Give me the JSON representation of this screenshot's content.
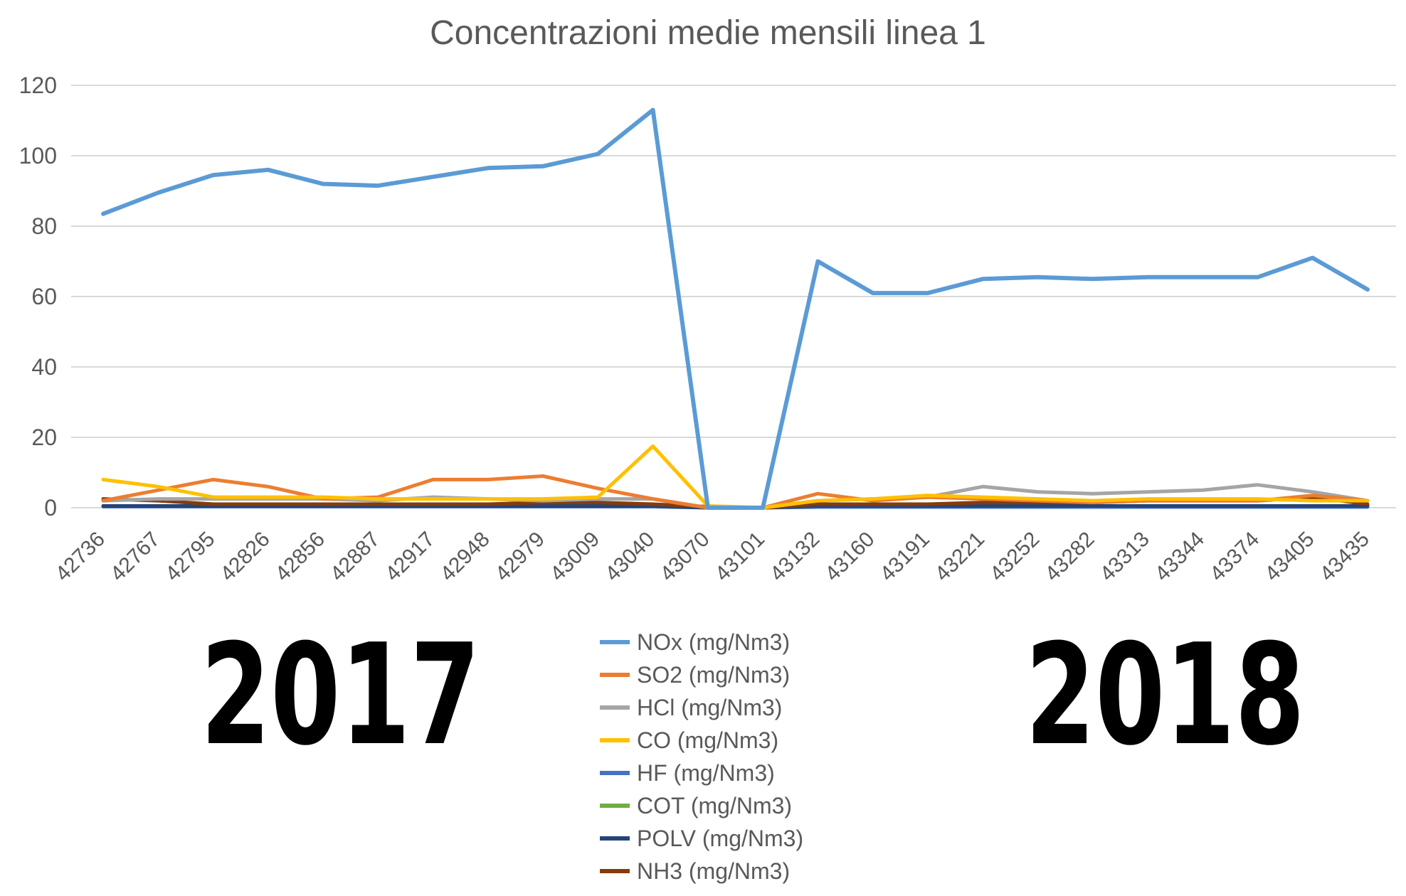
{
  "chart_data": {
    "type": "line",
    "title": "Concentrazioni medie mensili linea 1",
    "xlabel": "",
    "ylabel": "",
    "ylim": [
      0,
      120
    ],
    "yticks": [
      "0",
      "20",
      "40",
      "60",
      "80",
      "100",
      "120"
    ],
    "grid": true,
    "legend_position": "bottom",
    "categories": [
      "42736",
      "42767",
      "42795",
      "42826",
      "42856",
      "42887",
      "42917",
      "42948",
      "42979",
      "43009",
      "43040",
      "43070",
      "43101",
      "43132",
      "43160",
      "43191",
      "43221",
      "43252",
      "43282",
      "43313",
      "43344",
      "43374",
      "43405",
      "43435"
    ],
    "series": [
      {
        "name": "NOx (mg/Nm3)",
        "color": "#5B9BD5",
        "values": [
          83.5,
          89.5,
          94.5,
          96,
          92,
          91.5,
          94,
          96.5,
          97,
          100.5,
          113,
          0,
          0,
          70,
          61,
          61,
          65,
          65.5,
          65,
          65.5,
          65.5,
          65.5,
          71,
          62
        ]
      },
      {
        "name": "SO2 (mg/Nm3)",
        "color": "#ED7D31",
        "values": [
          2,
          5,
          8,
          6,
          2.5,
          3,
          8,
          8,
          9,
          5.5,
          2.5,
          0,
          0,
          4,
          2,
          3,
          2.5,
          2,
          1.5,
          2,
          2,
          2,
          3.5,
          2
        ]
      },
      {
        "name": "HCl (mg/Nm3)",
        "color": "#A5A5A5",
        "values": [
          2,
          2.5,
          2.5,
          2.5,
          2.5,
          2,
          3,
          2.5,
          2,
          2.5,
          2.5,
          0,
          0,
          2,
          2.5,
          3,
          6,
          4.5,
          4,
          4.5,
          5,
          6.5,
          4.5,
          2
        ]
      },
      {
        "name": "CO (mg/Nm3)",
        "color": "#FFC000",
        "values": [
          8,
          6,
          3,
          3,
          3,
          2.5,
          2.5,
          2.5,
          2.5,
          3,
          17.5,
          0.5,
          0,
          2,
          2.5,
          3.5,
          3,
          2.5,
          2,
          2.5,
          2.5,
          2.5,
          2,
          2
        ]
      },
      {
        "name": "HF (mg/Nm3)",
        "color": "#4472C4",
        "values": [
          0.3,
          0.3,
          0.3,
          0.3,
          0.3,
          0.3,
          0.3,
          0.3,
          0.3,
          0.3,
          0.3,
          0,
          0,
          0.2,
          0.2,
          0.2,
          0.2,
          0.2,
          0.2,
          0.2,
          0.2,
          0.2,
          0.2,
          0.2
        ]
      },
      {
        "name": "COT (mg/Nm3)",
        "color": "#70AD47",
        "values": [
          0.5,
          0.5,
          0.5,
          0.5,
          0.5,
          0.5,
          0.5,
          0.5,
          0.5,
          0.5,
          0.5,
          0,
          0,
          0.5,
          0.5,
          0.5,
          0.5,
          0.5,
          0.5,
          0.5,
          0.5,
          0.5,
          0.5,
          0.5
        ]
      },
      {
        "name": "POLV (mg/Nm3)",
        "color": "#264478",
        "values": [
          0.5,
          0.5,
          0.5,
          0.5,
          0.5,
          0.5,
          0.5,
          0.5,
          0.5,
          0.5,
          0.5,
          0,
          0,
          0.5,
          0.5,
          0.5,
          0.5,
          0.5,
          0.5,
          0.5,
          0.5,
          0.5,
          0.5,
          0.5
        ]
      },
      {
        "name": "NH3 (mg/Nm3)",
        "color": "#843C0C",
        "values": [
          2.5,
          2,
          1,
          1,
          1,
          1,
          1,
          1,
          1.5,
          1.5,
          1,
          0.3,
          0,
          1,
          1,
          1,
          1.5,
          1.5,
          1.5,
          2,
          2,
          2,
          3,
          1
        ]
      }
    ]
  },
  "annotations": {
    "year_left": "2017",
    "year_right": "2018"
  }
}
